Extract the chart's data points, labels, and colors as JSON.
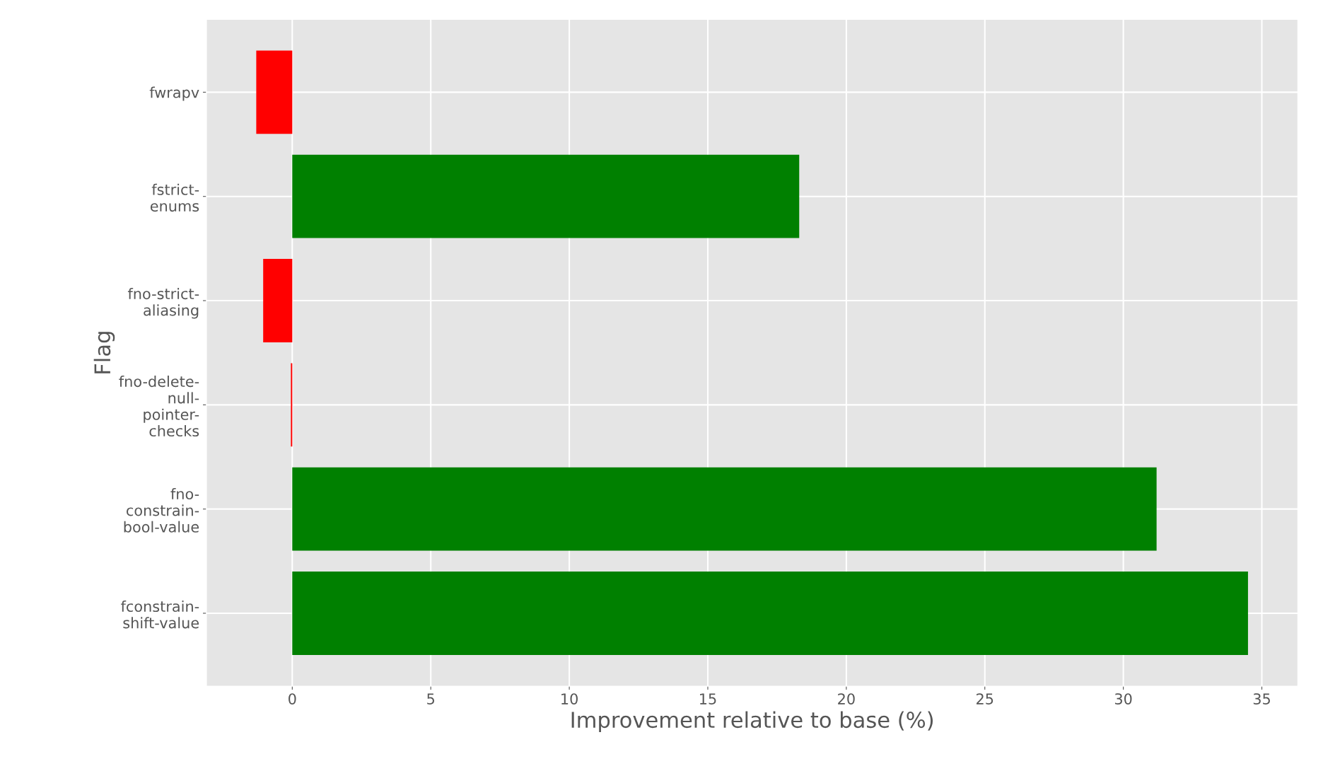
{
  "chart_data": {
    "type": "bar",
    "orientation": "horizontal",
    "xlabel": "Improvement relative to base (%)",
    "ylabel": "Flag",
    "categories": [
      "fwrapv",
      "fstrict-\nenums",
      "fno-strict-\naliasing",
      "fno-delete-\nnull-\npointer-\nchecks",
      "fno-\nconstrain-\nbool-value",
      "fconstrain-\nshift-value"
    ],
    "values": [
      -1.3,
      18.3,
      -1.05,
      -0.05,
      31.2,
      34.5
    ],
    "colors": [
      "#ff0000",
      "#008000",
      "#ff0000",
      "#ff0000",
      "#008000",
      "#008000"
    ],
    "xlim": [
      -3.1,
      36.3
    ],
    "xticks": [
      0,
      5,
      10,
      15,
      20,
      25,
      30,
      35
    ],
    "grid": true,
    "legend": false
  }
}
